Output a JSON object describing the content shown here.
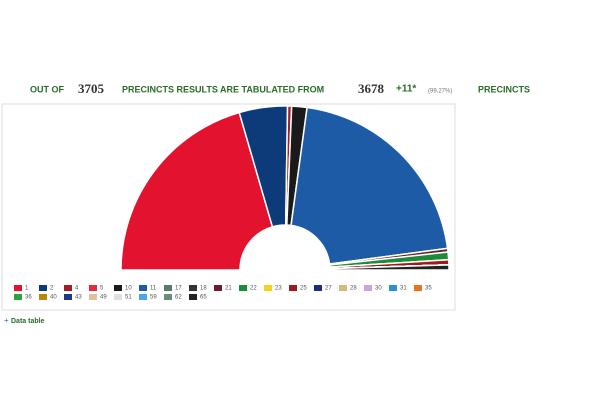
{
  "header": {
    "lead": "OUT OF",
    "total": "3705",
    "middle": "PRECINCTS RESULTS ARE TABULATED FROM",
    "counted": "3678",
    "extra": "+11*",
    "percent": "(99.27%)",
    "tail": "PRECINCTS"
  },
  "chart_data": {
    "type": "semi-donut",
    "series": [
      {
        "name": "1",
        "color": "#e3132f",
        "value": 41
      },
      {
        "name": "2",
        "color": "#0d3b7a",
        "value": 9.5
      },
      {
        "name": "4",
        "color": "#a51c24",
        "value": 0.8
      },
      {
        "name": "5",
        "color": "#e8283c",
        "value": 0
      },
      {
        "name": "10",
        "color": "#1a1a1a",
        "value": 3
      },
      {
        "name": "11",
        "color": "#1d5ba6",
        "value": 41.5
      },
      {
        "name": "17",
        "color": "#5c7a6a",
        "value": 0
      },
      {
        "name": "18",
        "color": "#333333",
        "value": 0
      },
      {
        "name": "21",
        "color": "#6b1d2e",
        "value": 0.7
      },
      {
        "name": "22",
        "color": "#1e8b3a",
        "value": 1.5
      },
      {
        "name": "23",
        "color": "#f2d21b",
        "value": 0
      },
      {
        "name": "25",
        "color": "#9e1b1b",
        "value": 1
      },
      {
        "name": "27",
        "color": "#1b2f7a",
        "value": 0
      },
      {
        "name": "28",
        "color": "#d9b779",
        "value": 0
      },
      {
        "name": "30",
        "color": "#c9a6d9",
        "value": 0
      },
      {
        "name": "31",
        "color": "#2a8fd6",
        "value": 0
      },
      {
        "name": "35",
        "color": "#e8731e",
        "value": 0
      },
      {
        "name": "36",
        "color": "#2aa33f",
        "value": 0
      },
      {
        "name": "40",
        "color": "#b8860b",
        "value": 0
      },
      {
        "name": "43",
        "color": "#1a3a8a",
        "value": 0
      },
      {
        "name": "49",
        "color": "#d9c49a",
        "value": 0
      },
      {
        "name": "51",
        "color": "#e0e0e0",
        "value": 0
      },
      {
        "name": "59",
        "color": "#4aa8e8",
        "value": 0
      },
      {
        "name": "62",
        "color": "#6b8c7a",
        "value": 0
      },
      {
        "name": "65",
        "color": "#222222",
        "value": 1
      }
    ]
  },
  "link": "Data table"
}
